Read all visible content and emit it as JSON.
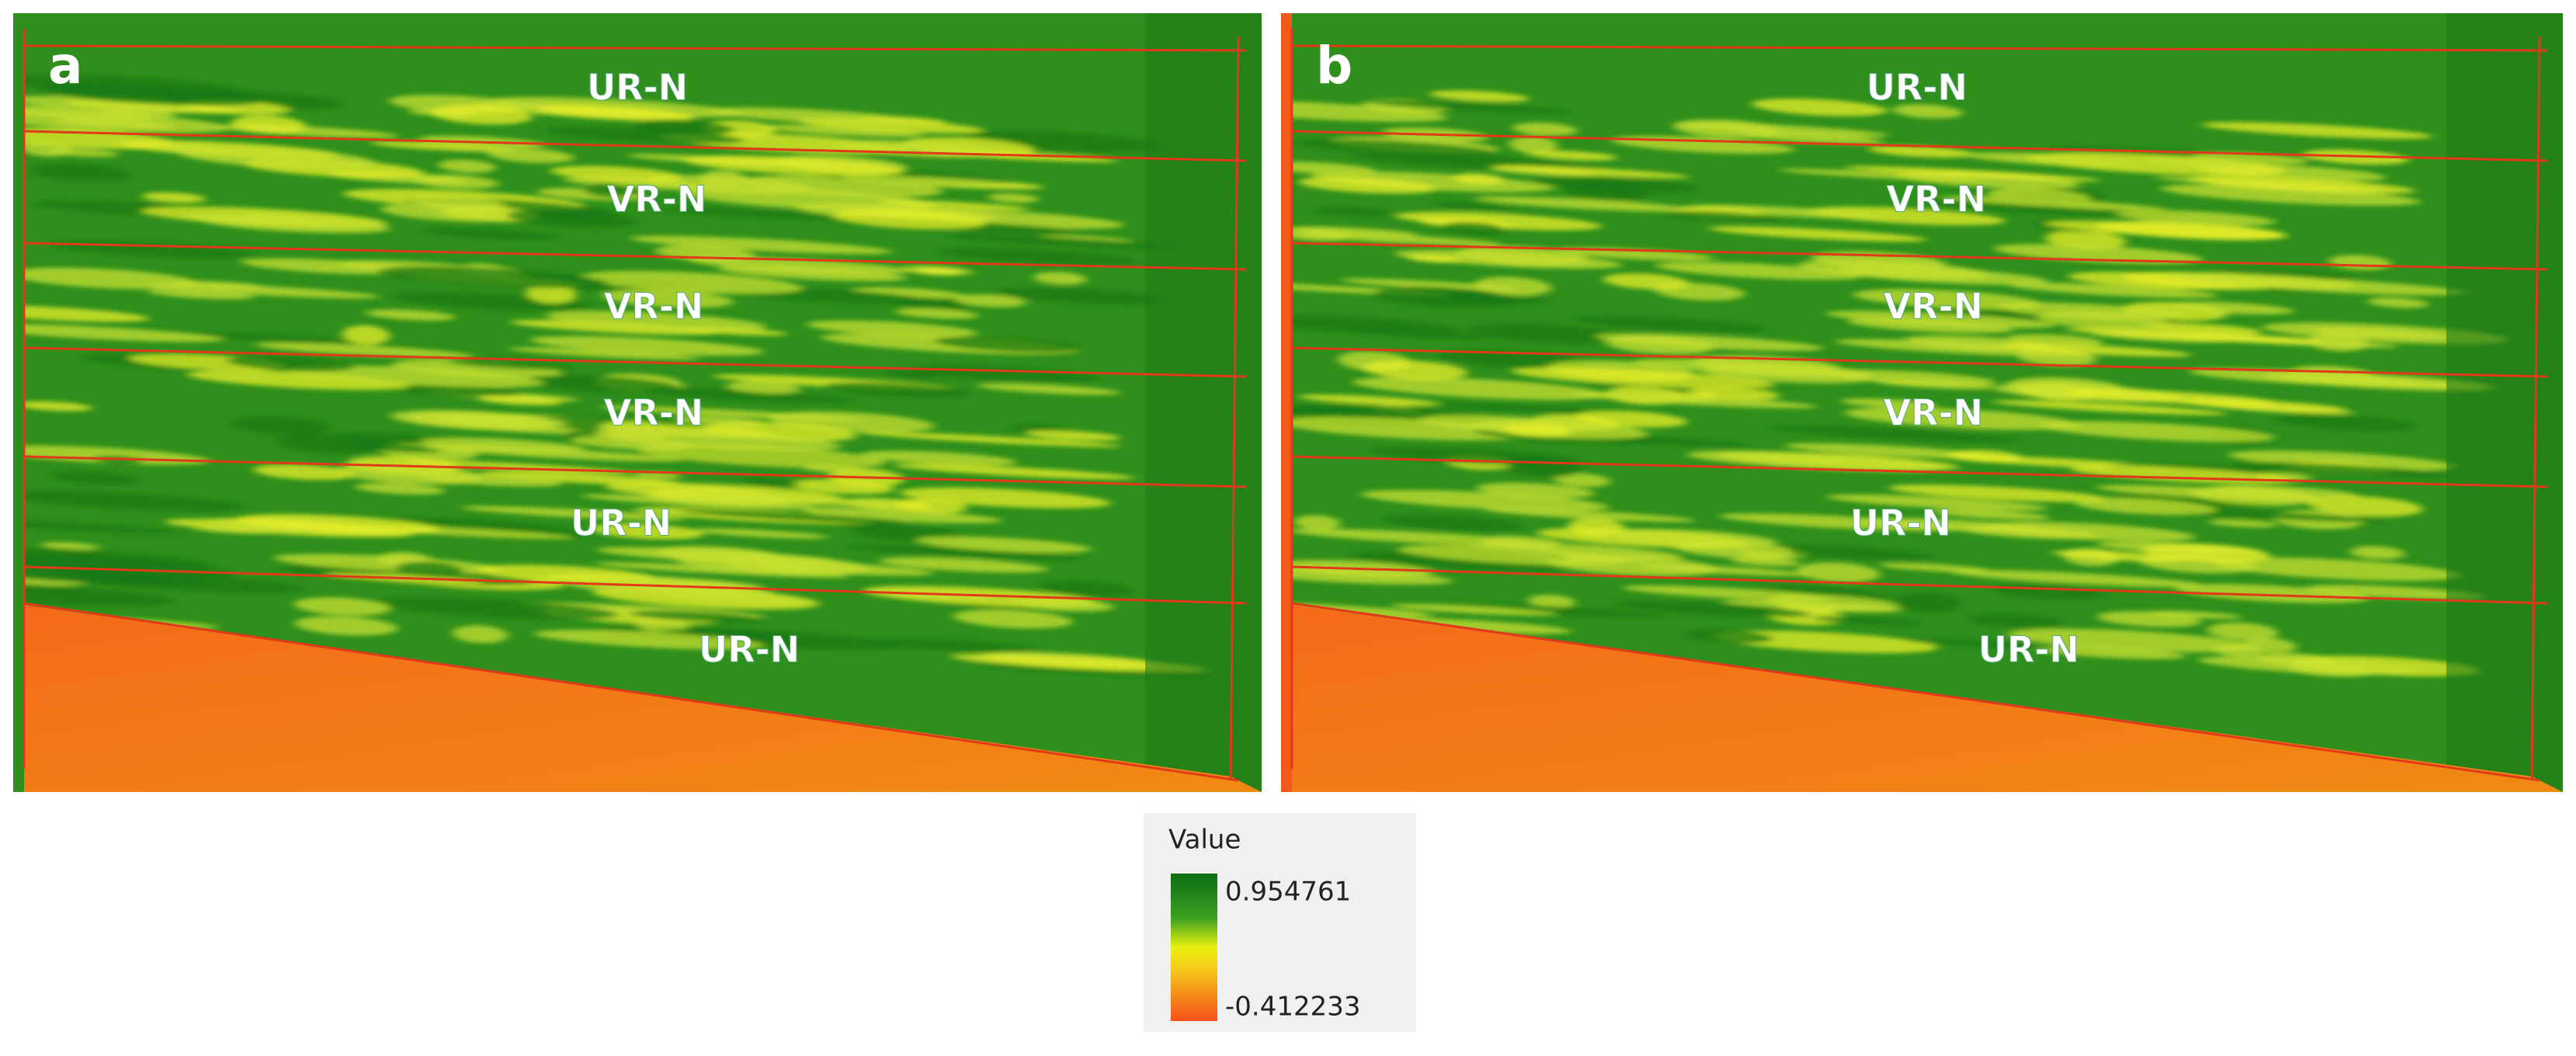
{
  "panels": [
    {
      "label": "a",
      "strips": [
        "UR-N",
        "VR-N",
        "VR-N",
        "VR-N",
        "UR-N",
        "UR-N"
      ]
    },
    {
      "label": "b",
      "strips": [
        "UR-N",
        "VR-N",
        "VR-N",
        "VR-N",
        "UR-N",
        "UR-N"
      ]
    }
  ],
  "legend": {
    "title": "Value",
    "max": "0.954761",
    "min": "-0.412233"
  }
}
